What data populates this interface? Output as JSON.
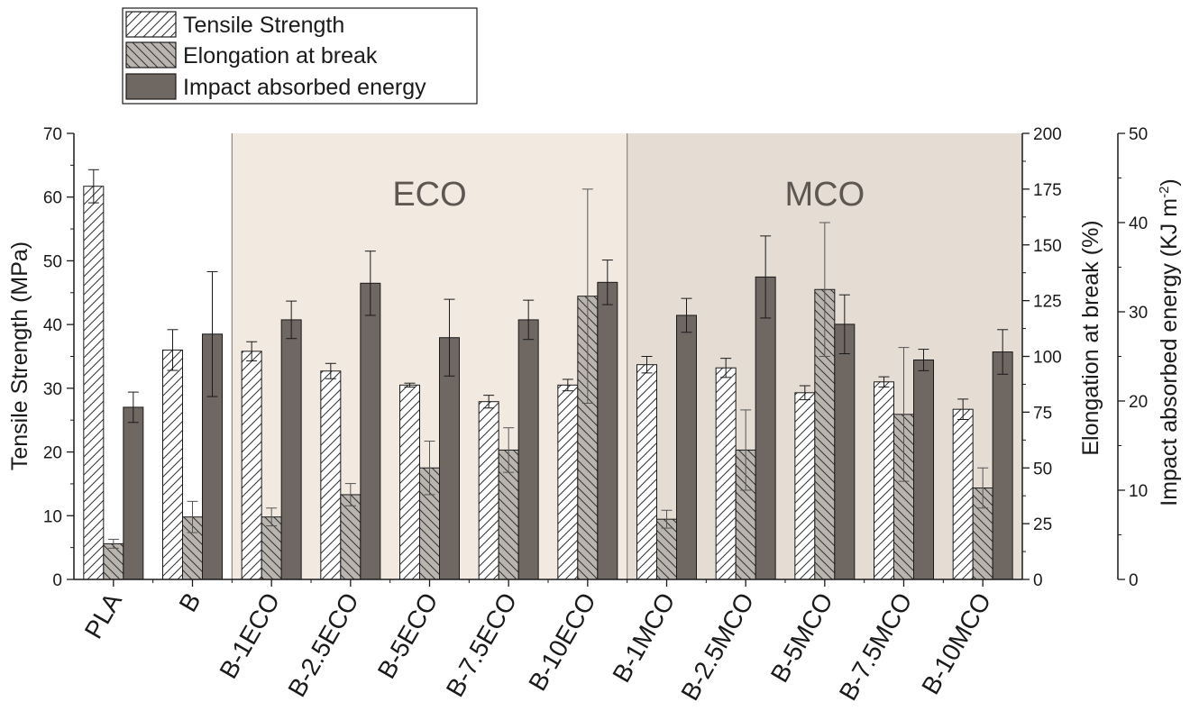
{
  "chart_data": {
    "type": "bar",
    "categories": [
      "PLA",
      "B",
      "B-1ECO",
      "B-2.5ECO",
      "B-5ECO",
      "B-7.5ECO",
      "B-10ECO",
      "B-1MCO",
      "B-2.5MCO",
      "B-5MCO",
      "B-7.5MCO",
      "B-10MCO"
    ],
    "legend": {
      "position": "top-left, outside plot",
      "entries": [
        "Tensile Strength",
        "Elongation at break",
        "Impact absorbed energy"
      ]
    },
    "regions": [
      {
        "label": "ECO",
        "from_category": "B-1ECO",
        "to_category": "B-10ECO",
        "color": "#f2e9e1"
      },
      {
        "label": "MCO",
        "from_category": "B-1MCO",
        "to_category": "B-10MCO",
        "color": "#e5dcd4"
      }
    ],
    "axes": {
      "left": {
        "label": "Tensile Strength (MPa)",
        "ylim": [
          0,
          70
        ],
        "ticks": [
          "0",
          "10",
          "20",
          "30",
          "40",
          "50",
          "60",
          "70"
        ]
      },
      "right1": {
        "label": "Elongation at break (%)",
        "ylim": [
          0,
          200
        ],
        "ticks": [
          "0",
          "25",
          "50",
          "75",
          "100",
          "125",
          "150",
          "175",
          "200"
        ]
      },
      "right2": {
        "label_main": "Impact absorbed energy (KJ m",
        "label_sup": "-2",
        "label_end": ")",
        "ylim": [
          0,
          50
        ],
        "ticks": [
          "0",
          "10",
          "20",
          "30",
          "40",
          "50"
        ]
      }
    },
    "series": [
      {
        "name": "Tensile Strength",
        "axis": "left",
        "fill": "hatch-forward",
        "values": [
          61.7,
          36.0,
          35.8,
          32.7,
          30.5,
          27.9,
          30.5,
          33.7,
          33.2,
          29.3,
          31.0,
          26.7
        ],
        "errors": [
          2.6,
          3.2,
          1.5,
          1.2,
          0.3,
          1.0,
          0.9,
          1.3,
          1.5,
          1.1,
          0.8,
          1.6
        ]
      },
      {
        "name": "Elongation at break",
        "axis": "right1",
        "fill": "hatch-back-gray",
        "values": [
          16,
          28,
          28,
          38,
          50,
          58,
          127,
          27,
          58,
          130,
          74,
          41
        ],
        "errors": [
          2,
          7,
          4,
          5,
          12,
          10,
          48,
          4,
          18,
          30,
          30,
          9
        ]
      },
      {
        "name": "Impact absorbed energy",
        "axis": "right2",
        "fill": "solid-dark",
        "values": [
          19.3,
          27.5,
          29.1,
          33.2,
          27.1,
          29.1,
          33.3,
          29.6,
          33.9,
          28.6,
          24.6,
          25.5
        ],
        "errors": [
          1.7,
          7.0,
          2.1,
          3.6,
          4.3,
          2.2,
          2.5,
          1.9,
          4.6,
          3.3,
          1.2,
          2.5
        ]
      }
    ],
    "colors": {
      "axis": "#1a1a1a",
      "bar_dark": "#6e6762",
      "bar_gray": "#b9b4ae",
      "bar_white": "#ffffff",
      "region_label": "#5e5650",
      "divider": "#8f8780"
    }
  }
}
